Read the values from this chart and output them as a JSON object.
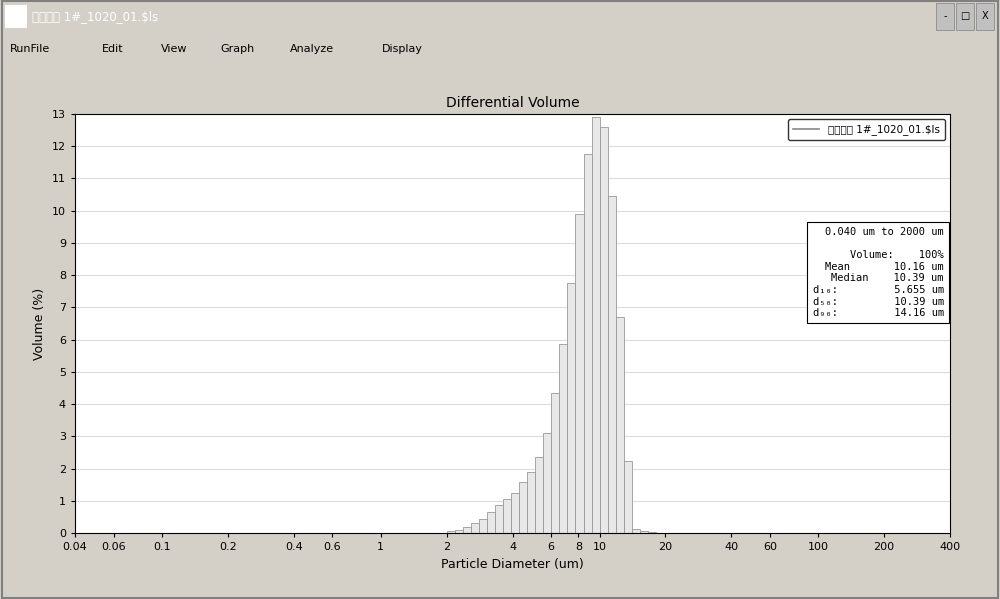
{
  "title": "Differential Volume",
  "xlabel": "Particle Diameter (um)",
  "ylabel": "Volume (%)",
  "window_title": "三元外样 1#_1020_01.$ls",
  "legend_label": "三元外样 1#_1020_01.$ls",
  "info_box": {
    "range": "0.040 um to 2000 um",
    "volume": "100%",
    "mean": "10.16 um",
    "median": "10.39 um",
    "d10": "5.655 um",
    "d50": "10.39 um",
    "d90": "14.16 um"
  },
  "bar_color": "#e8e8e8",
  "bar_edge_color": "#999999",
  "title_bar_color": "#000080",
  "menu_bar_color": "#d4d0c8",
  "outer_bg_color": "#d4d0c8",
  "plot_bg_color": "#ffffff",
  "plot_border_color": "#000000",
  "ylim": [
    0,
    13
  ],
  "bar_data": {
    "diameters": [
      2.0,
      2.18,
      2.37,
      2.58,
      2.81,
      3.06,
      3.33,
      3.62,
      3.94,
      4.29,
      4.67,
      5.08,
      5.53,
      6.02,
      6.55,
      7.13,
      7.76,
      8.45,
      9.2,
      10.01,
      10.89,
      11.86,
      12.9,
      14.04,
      15.28,
      16.63,
      18.1,
      19.7,
      21.44
    ],
    "values": [
      0.05,
      0.1,
      0.18,
      0.3,
      0.45,
      0.65,
      0.87,
      1.05,
      1.25,
      1.58,
      1.88,
      2.35,
      3.1,
      4.35,
      5.85,
      7.75,
      9.9,
      11.75,
      12.9,
      12.6,
      10.45,
      6.7,
      2.25,
      0.12,
      0.05,
      0.02,
      0.01,
      0.0,
      0.0
    ]
  },
  "xtick_labels": [
    "0.04",
    "0.06",
    "0.1",
    "0.2",
    "0.4",
    "0.6",
    "1",
    "2",
    "4",
    "6",
    "8",
    "10",
    "20",
    "40",
    "60",
    "100",
    "200",
    "400"
  ],
  "xtick_positions": [
    0.04,
    0.06,
    0.1,
    0.2,
    0.4,
    0.6,
    1.0,
    2.0,
    4.0,
    6.0,
    8.0,
    10.0,
    20.0,
    40.0,
    60.0,
    100.0,
    200.0,
    400.0
  ],
  "ytick_labels": [
    "0",
    "1",
    "2",
    "3",
    "4",
    "5",
    "6",
    "7",
    "8",
    "9",
    "10",
    "11",
    "12",
    "13"
  ],
  "ytick_positions": [
    0,
    1,
    2,
    3,
    4,
    5,
    6,
    7,
    8,
    9,
    10,
    11,
    12,
    13
  ],
  "menu_items": [
    "RunFile",
    "Edit",
    "View",
    "Graph",
    "Analyze",
    "Display"
  ],
  "win_buttons": [
    "-",
    "□",
    "X"
  ]
}
